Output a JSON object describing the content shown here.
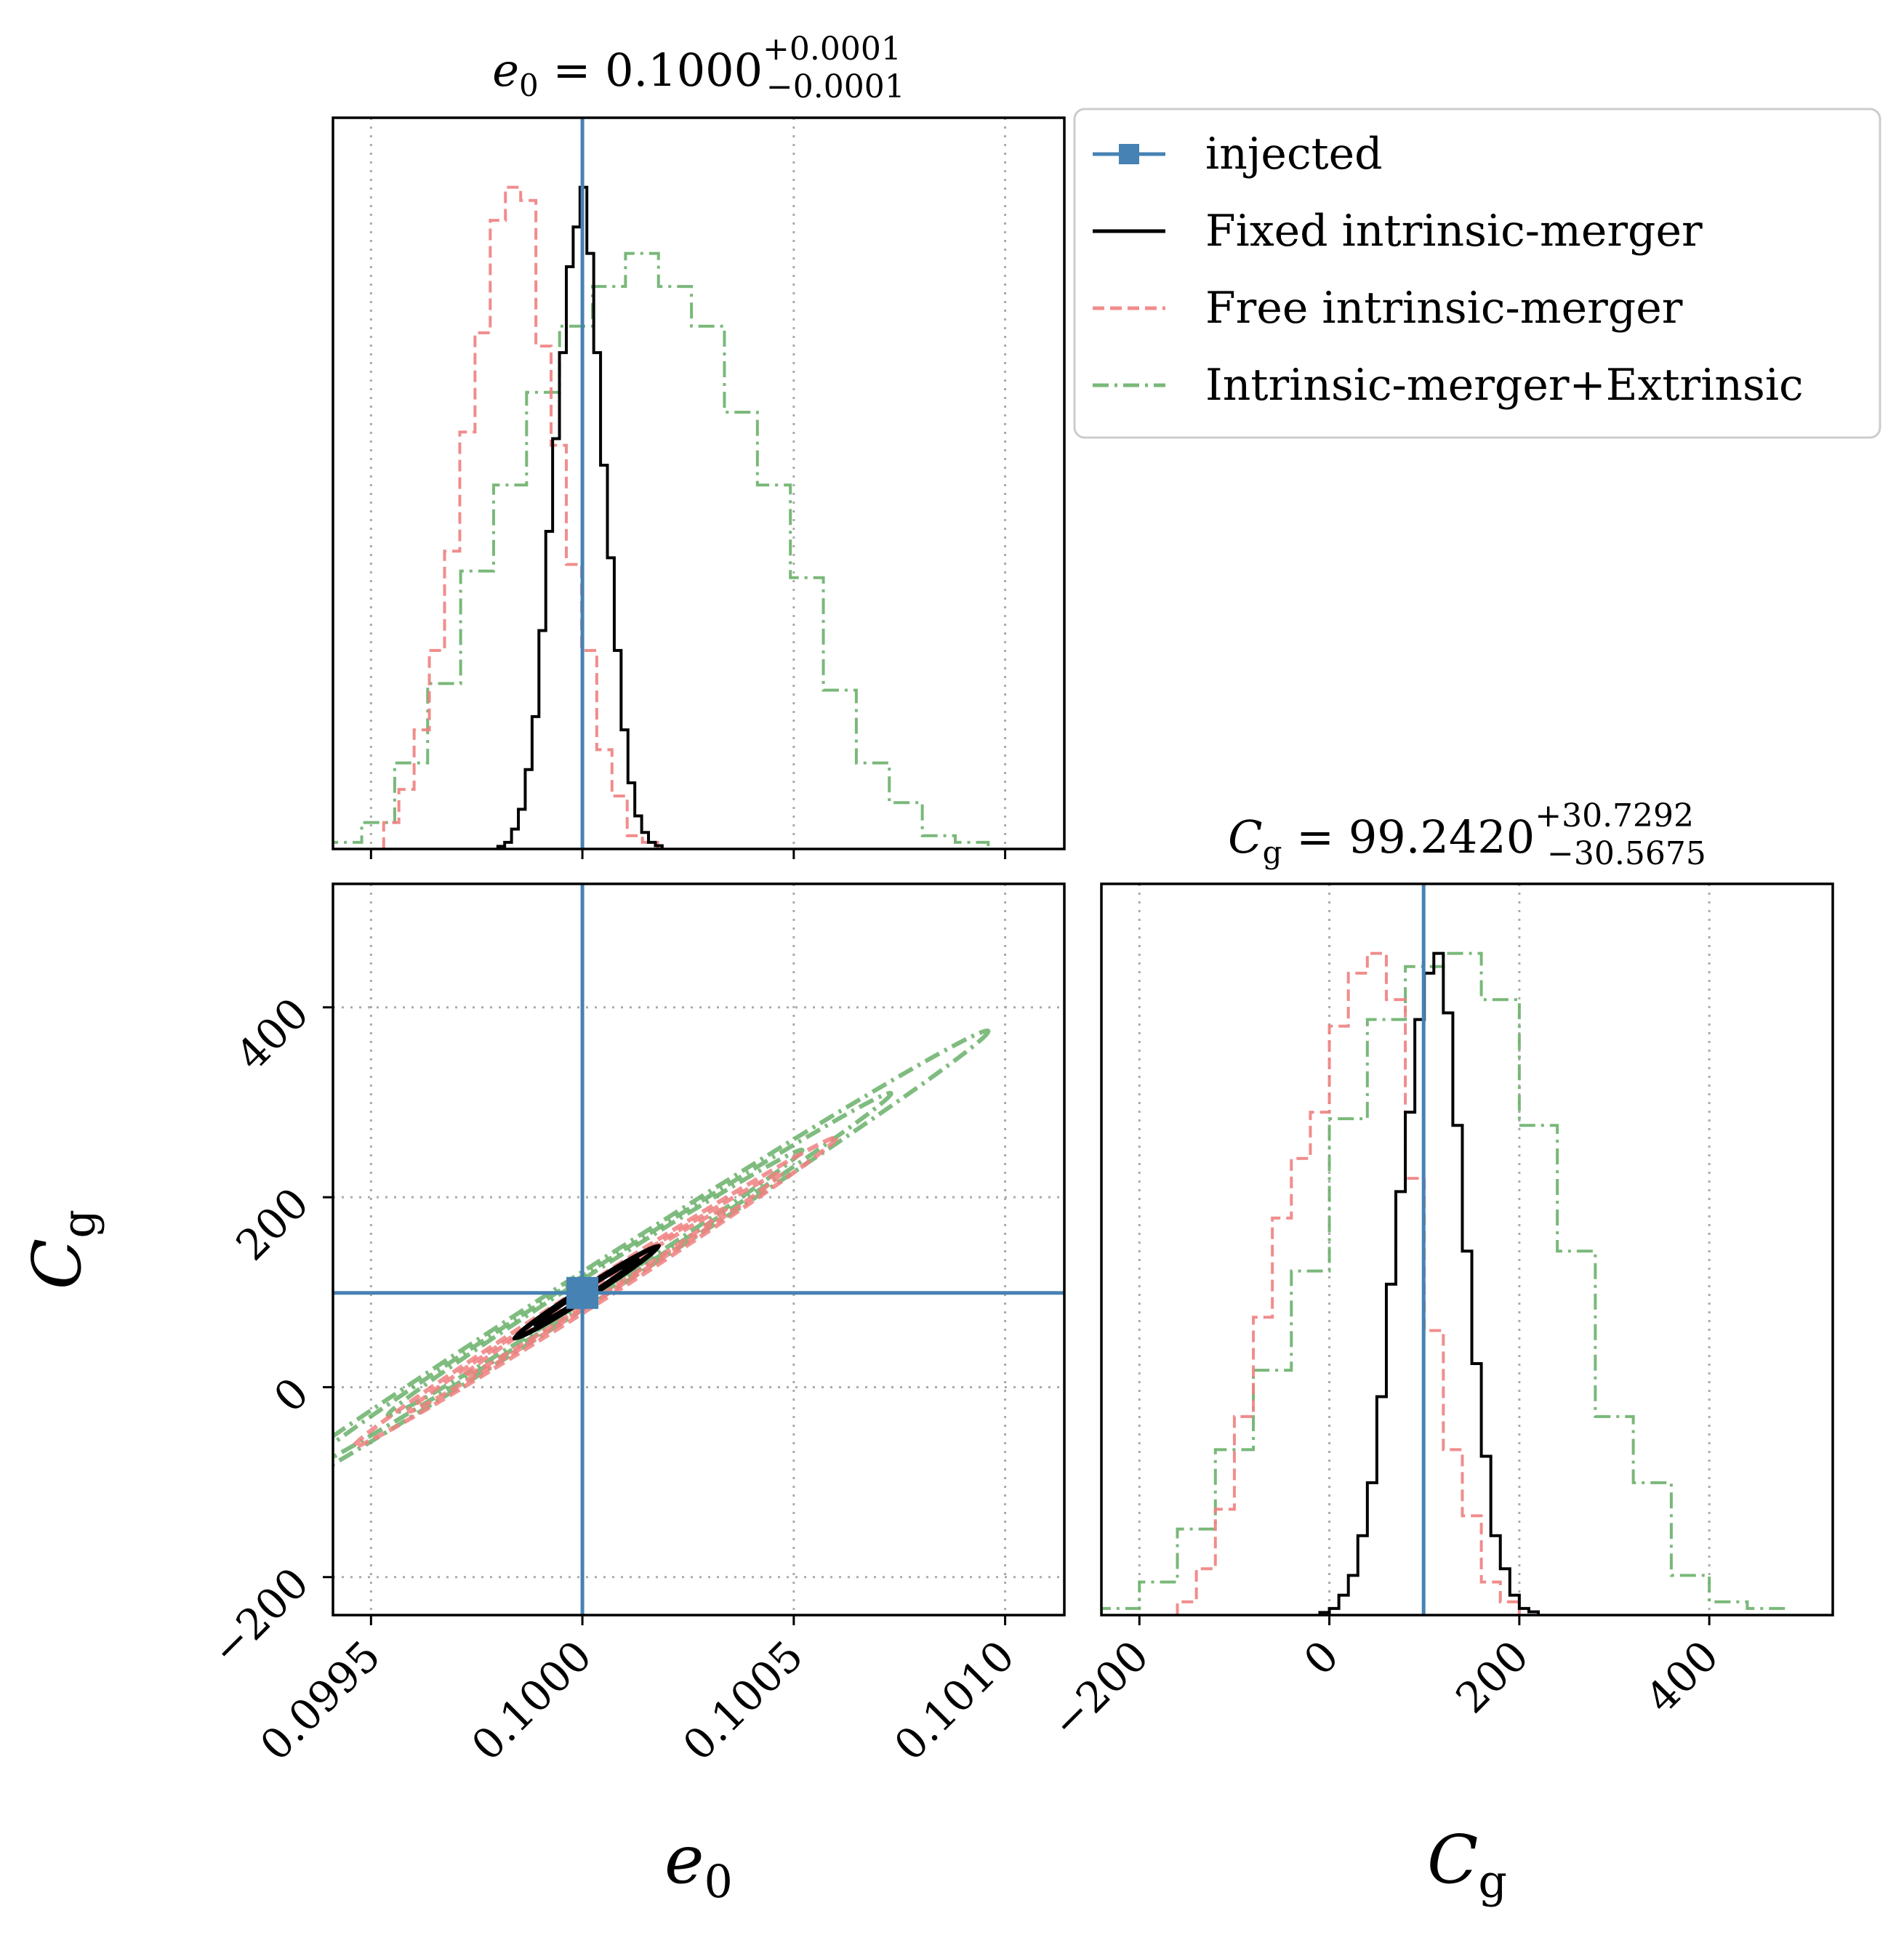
{
  "chart_data": {
    "type": "corner",
    "parameters": [
      {
        "key": "e0",
        "label": "e",
        "label_sub": "0",
        "injected": 0.1,
        "range": [
          0.09941,
          0.10114
        ],
        "ticks": [
          0.0995,
          0.1,
          0.1005,
          0.101
        ],
        "tick_labels": [
          "0.0995",
          "0.1000",
          "0.1005",
          "0.1010"
        ],
        "summary": {
          "lhs": "e",
          "sub": "0",
          "eq": " = 0.1000",
          "plus": "+0.0001",
          "minus": "−0.0001"
        }
      },
      {
        "key": "Cg",
        "label": "C",
        "label_sub": "g",
        "injected": 99.242,
        "range": [
          -240,
          530
        ],
        "ticks": [
          -200,
          0,
          200,
          400
        ],
        "tick_labels": [
          "−200",
          "0",
          "200",
          "400"
        ],
        "summary": {
          "lhs": "C",
          "sub": "g",
          "eq": " = 99.2420",
          "plus": "+30.7292",
          "minus": "−30.5675"
        }
      }
    ],
    "grid": true,
    "legend_position": "top-right",
    "series": [
      {
        "name": "Fixed intrinsic-merger",
        "color": "#000000",
        "linestyle": "solid",
        "e0_hist": {
          "start": 0.0998,
          "width": 1.62e-05,
          "counts": [
            0.004,
            0.01,
            0.03,
            0.06,
            0.12,
            0.2,
            0.33,
            0.48,
            0.62,
            0.75,
            0.88,
            0.94,
            1.0,
            0.9,
            0.75,
            0.58,
            0.44,
            0.3,
            0.18,
            0.1,
            0.05,
            0.025,
            0.01,
            0.005
          ]
        },
        "Cg_hist": {
          "start": -10,
          "width": 10,
          "counts": [
            0.004,
            0.01,
            0.03,
            0.06,
            0.12,
            0.2,
            0.33,
            0.5,
            0.64,
            0.76,
            0.9,
            0.97,
            1.0,
            0.91,
            0.74,
            0.55,
            0.38,
            0.24,
            0.12,
            0.07,
            0.03,
            0.01,
            0.005
          ]
        },
        "contours": [
          {
            "cx": 0.10001,
            "cy": 100,
            "a": 0.00017,
            "b": 7
          },
          {
            "cx": 0.10001,
            "cy": 100,
            "a": 0.00012,
            "b": 5
          }
        ]
      },
      {
        "name": "Free intrinsic-merger",
        "color": "#f08080",
        "linestyle": "dashed",
        "e0_hist": {
          "start": 0.09953,
          "width": 3.6e-05,
          "counts": [
            0.04,
            0.09,
            0.18,
            0.3,
            0.45,
            0.63,
            0.78,
            0.95,
            1.0,
            0.98,
            0.76,
            0.61,
            0.43,
            0.3,
            0.15,
            0.08,
            0.02,
            0.01
          ]
        },
        "Cg_hist": {
          "start": -160,
          "width": 20,
          "counts": [
            0.02,
            0.07,
            0.16,
            0.3,
            0.45,
            0.6,
            0.69,
            0.76,
            0.89,
            0.97,
            1.0,
            0.93,
            0.66,
            0.43,
            0.25,
            0.15,
            0.05,
            0.02
          ]
        },
        "contours": [
          {
            "cx": 0.10003,
            "cy": 100,
            "a": 0.00057,
            "b": 15
          },
          {
            "cx": 0.10003,
            "cy": 100,
            "a": 0.00044,
            "b": 11
          },
          {
            "cx": 0.10003,
            "cy": 100,
            "a": 0.00031,
            "b": 8
          }
        ]
      },
      {
        "name": "Intrinsic-merger+Extrinsic",
        "color": "#6ab06a",
        "linestyle": "dashdot",
        "e0_hist": {
          "start": 0.0994,
          "width": 7.8e-05,
          "counts": [
            0.01,
            0.04,
            0.13,
            0.25,
            0.42,
            0.55,
            0.69,
            0.79,
            0.85,
            0.9,
            0.85,
            0.79,
            0.66,
            0.55,
            0.41,
            0.24,
            0.13,
            0.07,
            0.02,
            0.01
          ]
        },
        "Cg_hist": {
          "start": -240,
          "width": 40,
          "counts": [
            0.01,
            0.05,
            0.13,
            0.25,
            0.37,
            0.52,
            0.75,
            0.9,
            0.98,
            1.0,
            0.93,
            0.74,
            0.55,
            0.3,
            0.2,
            0.06,
            0.02,
            0.01
          ]
        },
        "contours": [
          {
            "cx": 0.10003,
            "cy": 110,
            "a": 0.00093,
            "b": 22
          },
          {
            "cx": 0.10003,
            "cy": 110,
            "a": 0.0007,
            "b": 17
          },
          {
            "cx": 0.10003,
            "cy": 110,
            "a": 0.00049,
            "b": 13
          }
        ]
      }
    ],
    "injected": {
      "name": "injected",
      "color": "#4682b4"
    }
  }
}
